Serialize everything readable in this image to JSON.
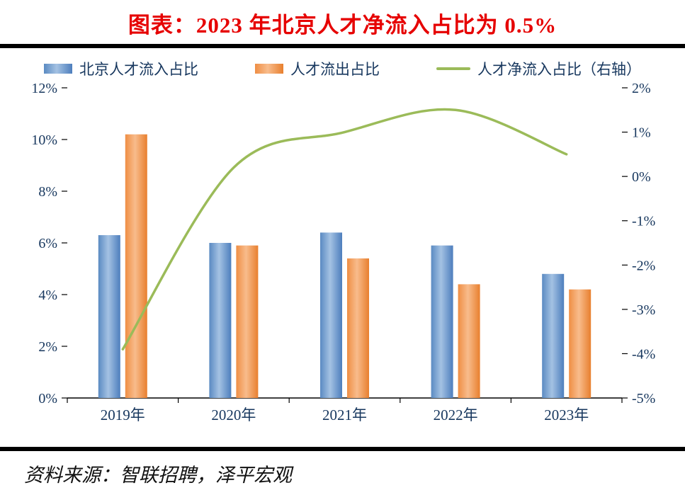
{
  "title": "图表：2023 年北京人才净流入占比为 0.5%",
  "source": "资料来源：智联招聘，泽平宏观",
  "legend": [
    {
      "label": "北京人才流入占比",
      "type": "bar",
      "color": "#4f81bd"
    },
    {
      "label": "人才流出占比",
      "type": "bar",
      "color": "#ed7d31"
    },
    {
      "label": "人才净流入占比（右轴）",
      "type": "line",
      "color": "#9bbb59"
    }
  ],
  "chart_data": {
    "type": "bar",
    "subtype": "bar+line combo, dual axis",
    "categories": [
      "2019年",
      "2020年",
      "2021年",
      "2022年",
      "2023年"
    ],
    "series": [
      {
        "name": "北京人才流入占比",
        "type": "bar",
        "axis": "left",
        "color": "#4f81bd",
        "values": [
          6.3,
          6.0,
          6.4,
          5.9,
          4.8
        ]
      },
      {
        "name": "人才流出占比",
        "type": "bar",
        "axis": "left",
        "color": "#ed7d31",
        "values": [
          10.2,
          5.9,
          5.4,
          4.4,
          4.2
        ]
      },
      {
        "name": "人才净流入占比（右轴）",
        "type": "line",
        "axis": "right",
        "color": "#9bbb59",
        "values": [
          -3.9,
          0.2,
          1.0,
          1.5,
          0.5
        ]
      }
    ],
    "left_axis": {
      "min": 0,
      "max": 12,
      "step": 2,
      "unit": "%",
      "ticks": [
        "0%",
        "2%",
        "4%",
        "6%",
        "8%",
        "10%",
        "12%"
      ]
    },
    "right_axis": {
      "min": -5,
      "max": 2,
      "step": 1,
      "unit": "%",
      "ticks": [
        "-5%",
        "-4%",
        "-3%",
        "-2%",
        "-1%",
        "0%",
        "1%",
        "2%"
      ]
    },
    "grid": false,
    "legend_position": "top",
    "title": "图表：2023 年北京人才净流入占比为 0.5%"
  },
  "colors": {
    "title": "#e60000",
    "axis_text": "#17375e",
    "inflow_bar": "#4f81bd",
    "outflow_bar": "#ed7d31",
    "net_line": "#9bbb59",
    "divider": "#000000"
  }
}
